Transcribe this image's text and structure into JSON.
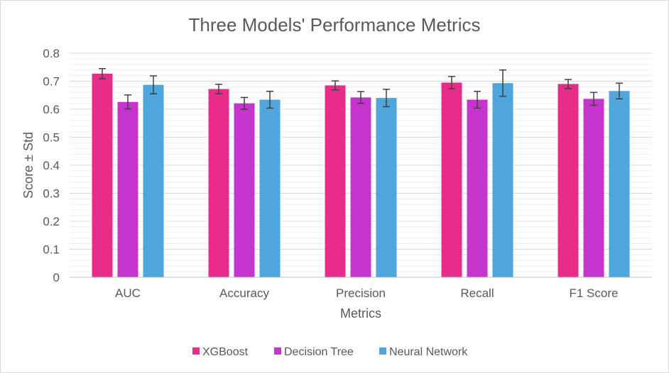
{
  "chart_data": {
    "type": "bar",
    "title": "Three Models' Performance Metrics",
    "xlabel": "Metrics",
    "ylabel": "Score ± Std",
    "ylim": [
      0,
      0.8
    ],
    "yticks": [
      "0",
      "0.1",
      "0.2",
      "0.3",
      "0.4",
      "0.5",
      "0.6",
      "0.7",
      "0.8"
    ],
    "categories": [
      "AUC",
      "Accuracy",
      "Precision",
      "Recall",
      "F1 Score"
    ],
    "series": [
      {
        "name": "XGBoost",
        "color": "#e72d8a",
        "values": [
          0.727,
          0.672,
          0.685,
          0.695,
          0.69
        ],
        "std": [
          0.018,
          0.017,
          0.016,
          0.022,
          0.016
        ]
      },
      {
        "name": "Decision Tree",
        "color": "#c534cc",
        "values": [
          0.626,
          0.621,
          0.642,
          0.634,
          0.637
        ],
        "std": [
          0.025,
          0.021,
          0.021,
          0.03,
          0.023
        ]
      },
      {
        "name": "Neural Network",
        "color": "#4fa6dc",
        "values": [
          0.687,
          0.634,
          0.64,
          0.693,
          0.665
        ],
        "std": [
          0.032,
          0.03,
          0.031,
          0.047,
          0.028
        ]
      }
    ],
    "grid": true,
    "legend_position": "bottom"
  }
}
